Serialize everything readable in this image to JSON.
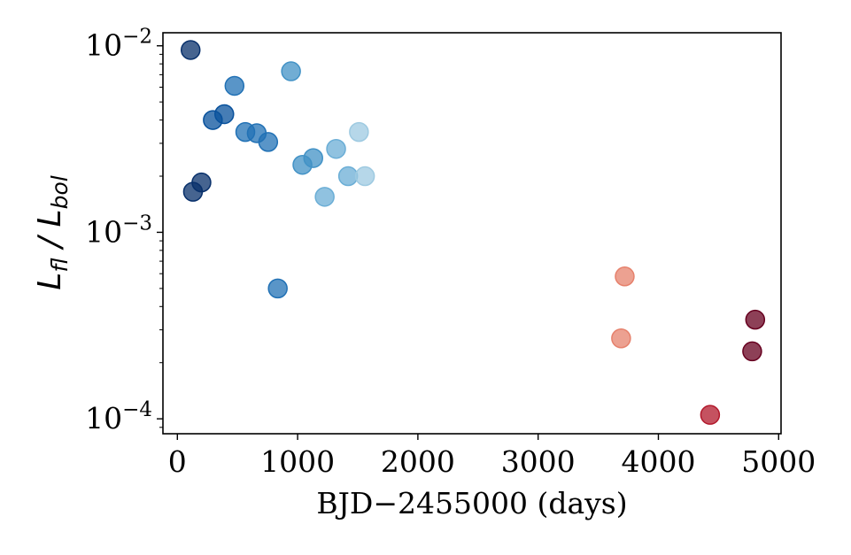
{
  "chart_data": {
    "type": "scatter",
    "xlabel": "BJD−2455000 (days)",
    "ylabel": {
      "prefix": "L",
      "num_sub": "fl",
      "sep": " / ",
      "den": "L",
      "den_sub": "bol"
    },
    "xlim": [
      -120,
      5020
    ],
    "ylim_log10": [
      -4.08,
      -1.93
    ],
    "yscale": "log",
    "grid": false,
    "xticks": [
      {
        "value": 0,
        "label": "0"
      },
      {
        "value": 1000,
        "label": "1000"
      },
      {
        "value": 2000,
        "label": "2000"
      },
      {
        "value": 3000,
        "label": "3000"
      },
      {
        "value": 4000,
        "label": "4000"
      },
      {
        "value": 5000,
        "label": "5000"
      }
    ],
    "yticks": [
      {
        "exp": -2,
        "base": "10",
        "sup": "−2"
      },
      {
        "exp": -3,
        "base": "10",
        "sup": "−3"
      },
      {
        "exp": -4,
        "base": "10",
        "sup": "−4"
      }
    ],
    "points": [
      {
        "x": 110,
        "y": 0.0095,
        "color": "#08306b"
      },
      {
        "x": 130,
        "y": 0.00165,
        "color": "#08306b"
      },
      {
        "x": 200,
        "y": 0.00185,
        "color": "#08306b"
      },
      {
        "x": 295,
        "y": 0.004,
        "color": "#08519c"
      },
      {
        "x": 390,
        "y": 0.0043,
        "color": "#08519c"
      },
      {
        "x": 475,
        "y": 0.0061,
        "color": "#2171b5"
      },
      {
        "x": 565,
        "y": 0.00345,
        "color": "#2171b5"
      },
      {
        "x": 660,
        "y": 0.0034,
        "color": "#2171b5"
      },
      {
        "x": 755,
        "y": 0.00305,
        "color": "#2171b5"
      },
      {
        "x": 835,
        "y": 0.0005,
        "color": "#2171b5"
      },
      {
        "x": 945,
        "y": 0.0073,
        "color": "#4292c6"
      },
      {
        "x": 1040,
        "y": 0.0023,
        "color": "#4292c6"
      },
      {
        "x": 1130,
        "y": 0.0025,
        "color": "#4292c6"
      },
      {
        "x": 1225,
        "y": 0.00155,
        "color": "#6baed6"
      },
      {
        "x": 1320,
        "y": 0.0028,
        "color": "#6baed6"
      },
      {
        "x": 1420,
        "y": 0.002,
        "color": "#6baed6"
      },
      {
        "x": 1510,
        "y": 0.00345,
        "color": "#9ecae1"
      },
      {
        "x": 1560,
        "y": 0.002,
        "color": "#9ecae1"
      },
      {
        "x": 3690,
        "y": 0.00027,
        "color": "#e6816c"
      },
      {
        "x": 3720,
        "y": 0.00058,
        "color": "#e6816c"
      },
      {
        "x": 4430,
        "y": 0.000105,
        "color": "#b2182b"
      },
      {
        "x": 4780,
        "y": 0.00023,
        "color": "#67001f"
      },
      {
        "x": 4805,
        "y": 0.00034,
        "color": "#67001f"
      }
    ]
  }
}
